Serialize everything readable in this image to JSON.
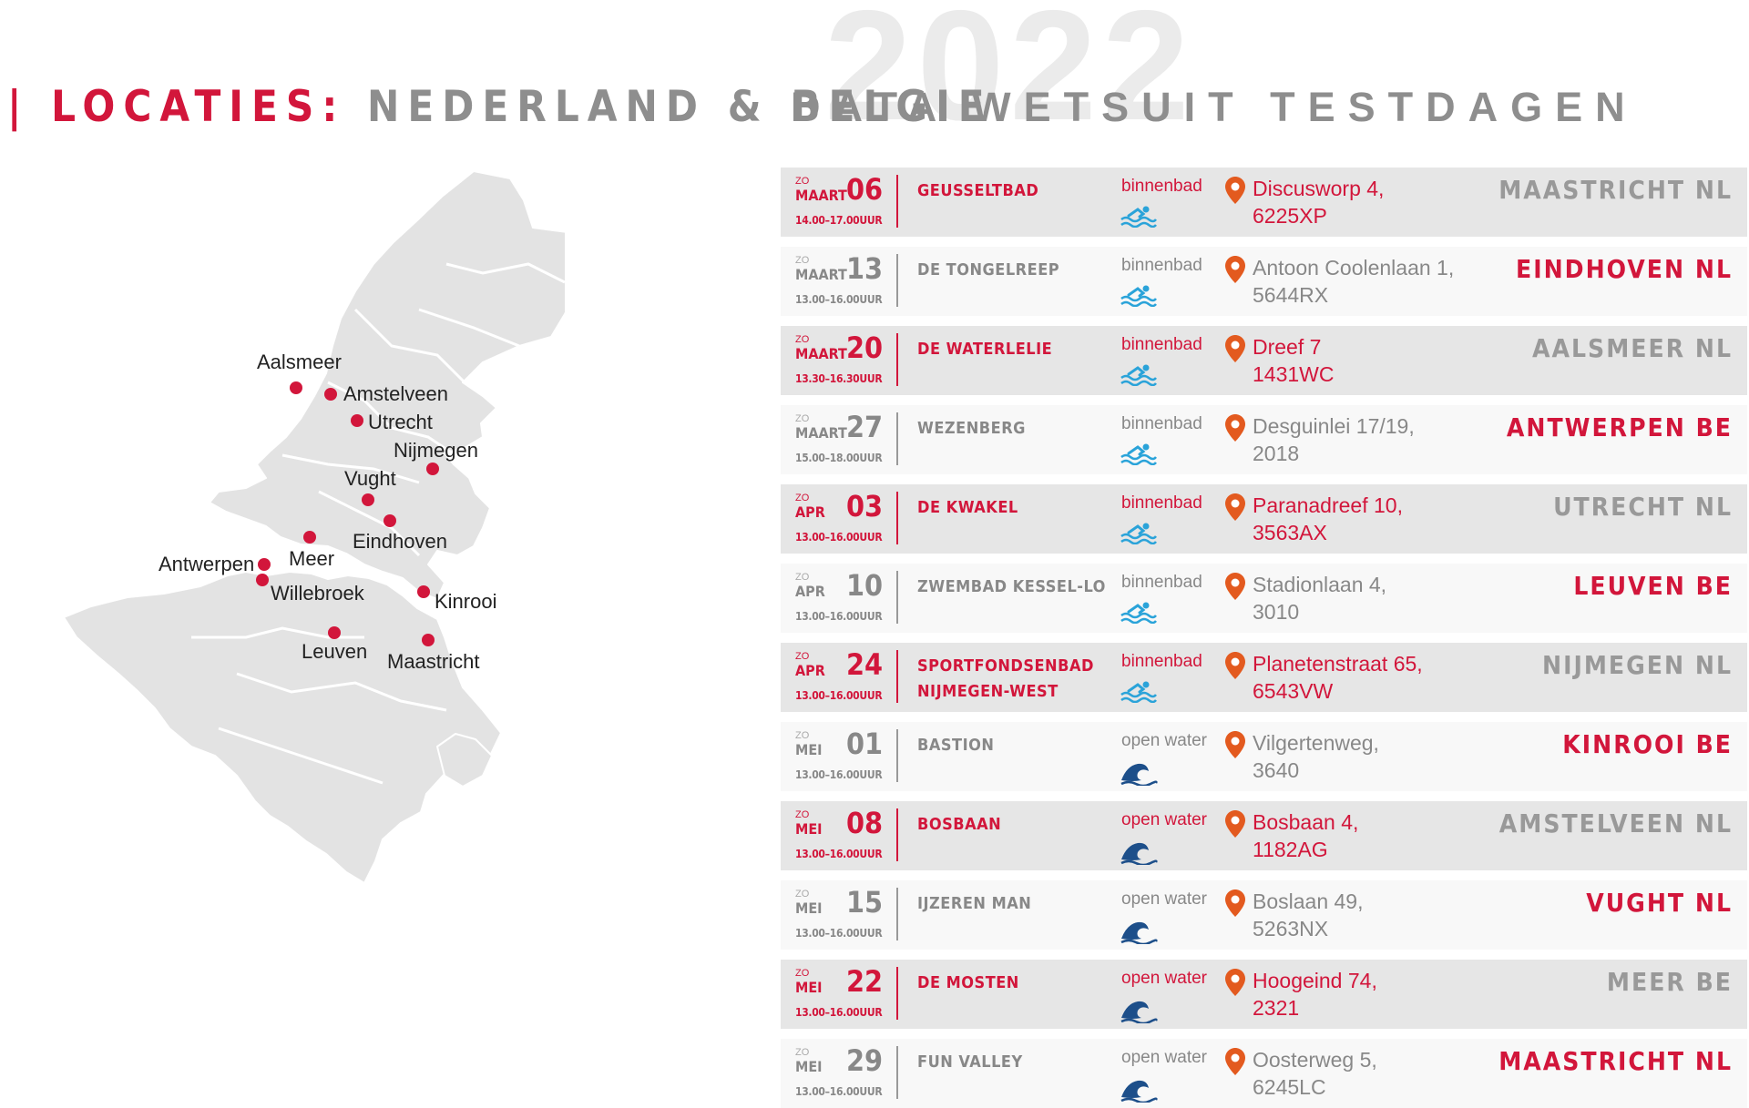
{
  "header": {
    "left_red": "| LOCATIES:",
    "left_grey": "NEDERLAND & BELGIE",
    "year": "2022",
    "right_title": "DATA WETSUIT TESTDAGEN"
  },
  "colors": {
    "accent": "#d2163b",
    "grey_text": "#8e8e8e",
    "row_highlight": "#e6e6e6",
    "row_normal": "#f8f8f8",
    "map_fill": "#e3e3e3"
  },
  "map": {
    "labels": {
      "aalsmeer": "Aalsmeer",
      "amstelveen": "Amstelveen",
      "utrecht": "Utrecht",
      "nijmegen": "Nijmegen",
      "vught": "Vught",
      "eindhoven": "Eindhoven",
      "meer": "Meer",
      "antwerpen": "Antwerpen",
      "willebroek": "Willebroek",
      "kinrooi": "Kinrooi",
      "leuven": "Leuven",
      "maastricht": "Maastricht"
    }
  },
  "events": [
    {
      "dow": "ZO",
      "month": "MAART",
      "day": "06",
      "time": "14.00–17.00UUR",
      "venue": [
        "GEUSSELTBAD"
      ],
      "type": "binnenbad",
      "icon": "swimmer-icon",
      "addr1": "Discusworp 4,",
      "addr2": "6225XP",
      "city": "MAASTRICHT NL"
    },
    {
      "dow": "ZO",
      "month": "MAART",
      "day": "13",
      "time": "13.00–16.00UUR",
      "venue": [
        "DE TONGELREEP"
      ],
      "type": "binnenbad",
      "icon": "swimmer-icon",
      "addr1": "Antoon Coolenlaan 1,",
      "addr2": "5644RX",
      "city": "EINDHOVEN NL"
    },
    {
      "dow": "ZO",
      "month": "MAART",
      "day": "20",
      "time": "13.30–16.30UUR",
      "venue": [
        "DE WATERLELIE"
      ],
      "type": "binnenbad",
      "icon": "swimmer-icon",
      "addr1": "Dreef 7",
      "addr2": "1431WC",
      "city": "AALSMEER NL"
    },
    {
      "dow": "ZO",
      "month": "MAART",
      "day": "27",
      "time": "15.00–18.00UUR",
      "venue": [
        "WEZENBERG"
      ],
      "type": "binnenbad",
      "icon": "swimmer-icon",
      "addr1": "Desguinlei 17/19,",
      "addr2": "2018",
      "city": "ANTWERPEN BE"
    },
    {
      "dow": "ZO",
      "month": "APR",
      "day": "03",
      "time": "13.00–16.00UUR",
      "venue": [
        "DE KWAKEL"
      ],
      "type": "binnenbad",
      "icon": "swimmer-icon",
      "addr1": "Paranadreef 10,",
      "addr2": "3563AX",
      "city": "UTRECHT NL"
    },
    {
      "dow": "ZO",
      "month": "APR",
      "day": "10",
      "time": "13.00–16.00UUR",
      "venue": [
        "ZWEMBAD KESSEL-LO"
      ],
      "type": "binnenbad",
      "icon": "swimmer-icon",
      "addr1": "Stadionlaan 4,",
      "addr2": "3010",
      "city": "LEUVEN BE"
    },
    {
      "dow": "ZO",
      "month": "APR",
      "day": "24",
      "time": "13.00–16.00UUR",
      "venue": [
        "SPORTFONDSENBAD",
        "NIJMEGEN-WEST"
      ],
      "type": "binnenbad",
      "icon": "swimmer-icon",
      "addr1": "Planetenstraat 65,",
      "addr2": "6543VW",
      "city": "NIJMEGEN NL"
    },
    {
      "dow": "ZO",
      "month": "MEI",
      "day": "01",
      "time": "13.00–16.00UUR",
      "venue": [
        "BASTION"
      ],
      "type": "open water",
      "icon": "wave-icon",
      "addr1": "Vilgertenweg,",
      "addr2": "3640",
      "city": "KINROOI BE"
    },
    {
      "dow": "ZO",
      "month": "MEI",
      "day": "08",
      "time": "13.00–16.00UUR",
      "venue": [
        "BOSBAAN"
      ],
      "type": "open water",
      "icon": "wave-icon",
      "addr1": "Bosbaan 4,",
      "addr2": "1182AG",
      "city": "AMSTELVEEN NL"
    },
    {
      "dow": "ZO",
      "month": "MEI",
      "day": "15",
      "time": "13.00–16.00UUR",
      "venue": [
        "IJZEREN MAN"
      ],
      "type": "open water",
      "icon": "wave-icon",
      "addr1": "Boslaan 49,",
      "addr2": "5263NX",
      "city": "VUGHT NL"
    },
    {
      "dow": "ZO",
      "month": "MEI",
      "day": "22",
      "time": "13.00–16.00UUR",
      "venue": [
        "DE MOSTEN"
      ],
      "type": "open water",
      "icon": "wave-icon",
      "addr1": "Hoogeind 74,",
      "addr2": "2321",
      "city": "MEER BE"
    },
    {
      "dow": "ZO",
      "month": "MEI",
      "day": "29",
      "time": "13.00–16.00UUR",
      "venue": [
        "FUN VALLEY"
      ],
      "type": "open water",
      "icon": "wave-icon",
      "addr1": "Oosterweg 5,",
      "addr2": "6245LC",
      "city": "MAASTRICHT NL"
    }
  ]
}
